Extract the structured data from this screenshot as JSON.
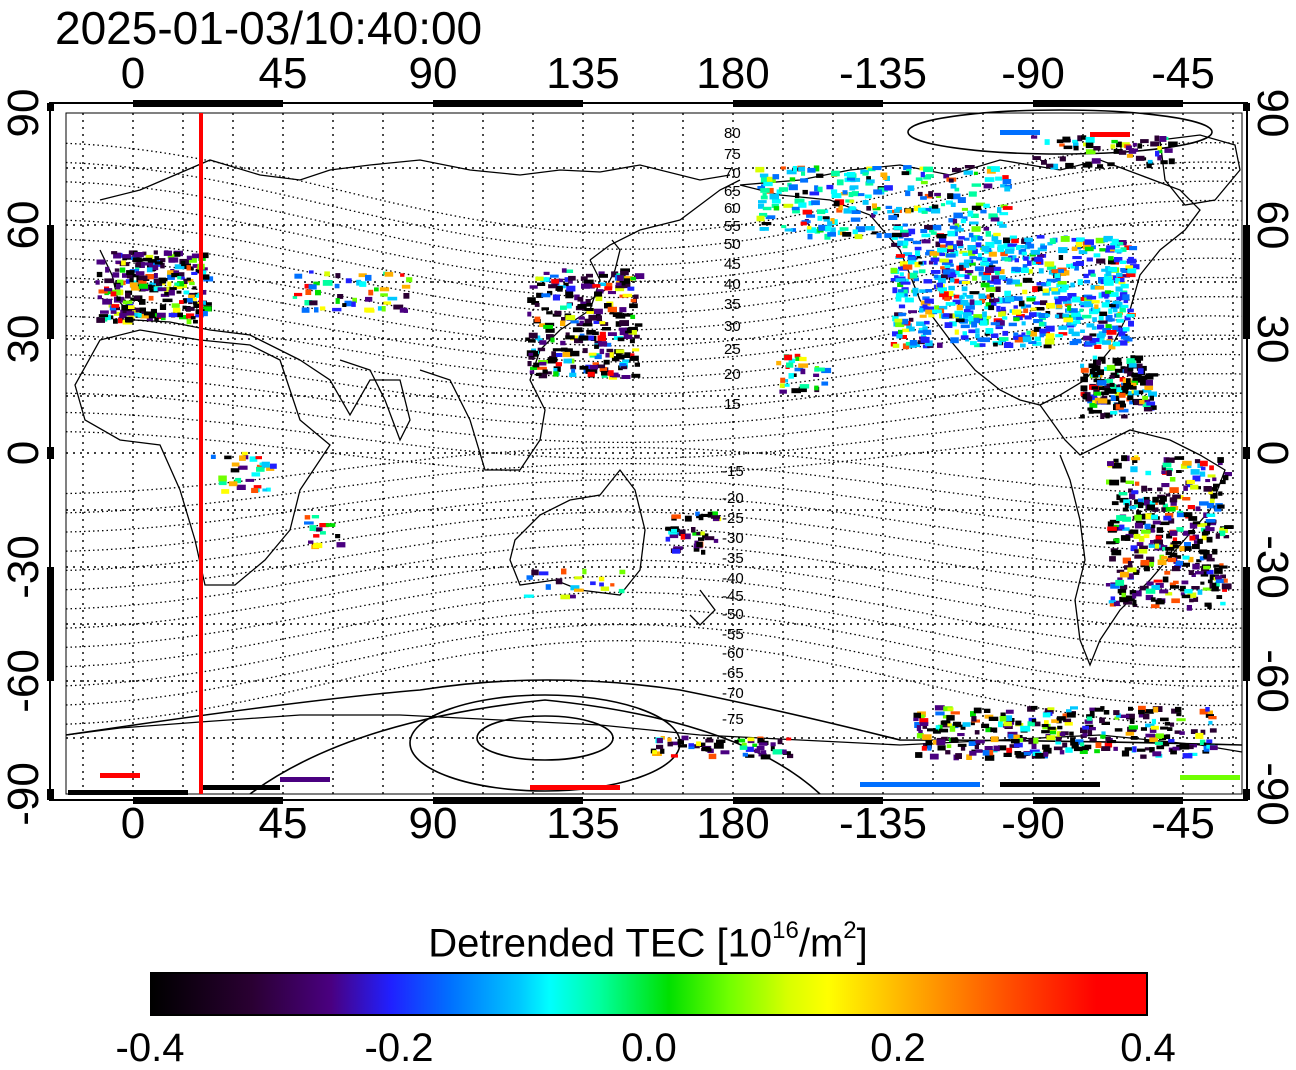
{
  "timestamp": "2025-01-03/10:40:00",
  "top_lon_labels": [
    "0",
    "45",
    "90",
    "135",
    "180",
    "-135",
    "-90",
    "-45"
  ],
  "bottom_lon_labels": [
    "0",
    "45",
    "90",
    "135",
    "180",
    "-135",
    "-90",
    "-45"
  ],
  "left_lat_labels": [
    "90",
    "60",
    "30",
    "0",
    "-30",
    "-60",
    "-90"
  ],
  "right_lat_labels": [
    "90",
    "60",
    "30",
    "0",
    "-30",
    "-60",
    "-90"
  ],
  "magnetic_lat_labels_north": [
    "80",
    "75",
    "70",
    "65",
    "60",
    "55",
    "50",
    "45",
    "40",
    "35",
    "30",
    "25",
    "20",
    "15"
  ],
  "magnetic_lat_labels_south": [
    "-15",
    "-20",
    "-25",
    "-30",
    "-35",
    "-40",
    "-45",
    "-50",
    "-55",
    "-60",
    "-65",
    "-70",
    "-75"
  ],
  "terminator": {
    "color": "#ff0000",
    "lon": 20
  },
  "colorbar": {
    "title_main": "Detrended TEC  [10",
    "title_exp1": "16",
    "title_mid": "/m",
    "title_exp2": "2",
    "title_end": "]",
    "min": -0.4,
    "max": 0.4,
    "tick_labels": [
      "-0.4",
      "-0.2",
      "0.0",
      "0.2",
      "0.4"
    ]
  }
}
